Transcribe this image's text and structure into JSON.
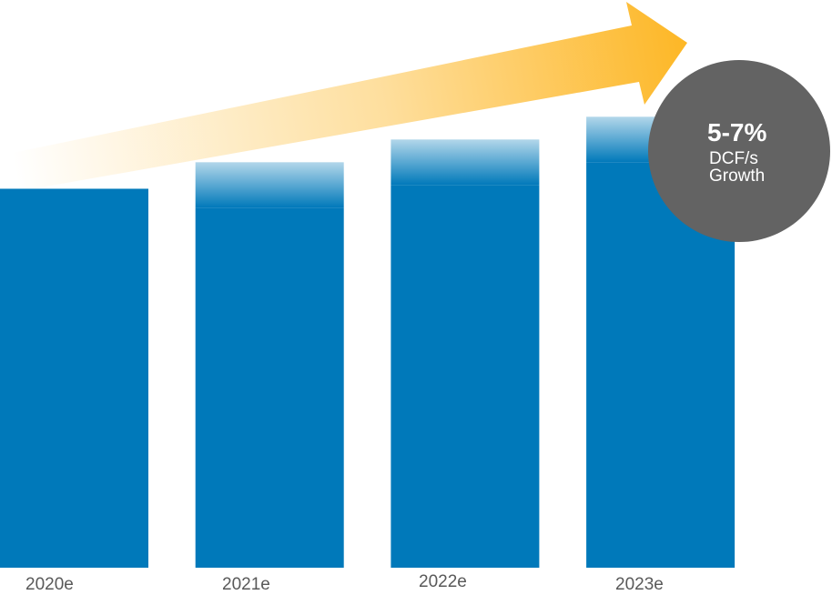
{
  "chart_data": {
    "type": "bar",
    "title": "",
    "xlabel": "",
    "ylabel": "",
    "categories": [
      "2020e",
      "2021e",
      "2022e",
      "2023e"
    ],
    "values": [
      100,
      107,
      113,
      119
    ],
    "uncertainty_band": [
      0,
      12,
      12,
      12
    ],
    "ylim": [
      0,
      121
    ],
    "grid": false,
    "legend": "none",
    "colors": {
      "bar": "#0079BA",
      "arrow": "#FDB726",
      "badge": "#636363",
      "tick_label": "#595959"
    }
  },
  "annotation": {
    "value": "5-7%",
    "line1": "DCF/s",
    "line2": "Growth",
    "icon": "up-right-arrow-icon"
  }
}
